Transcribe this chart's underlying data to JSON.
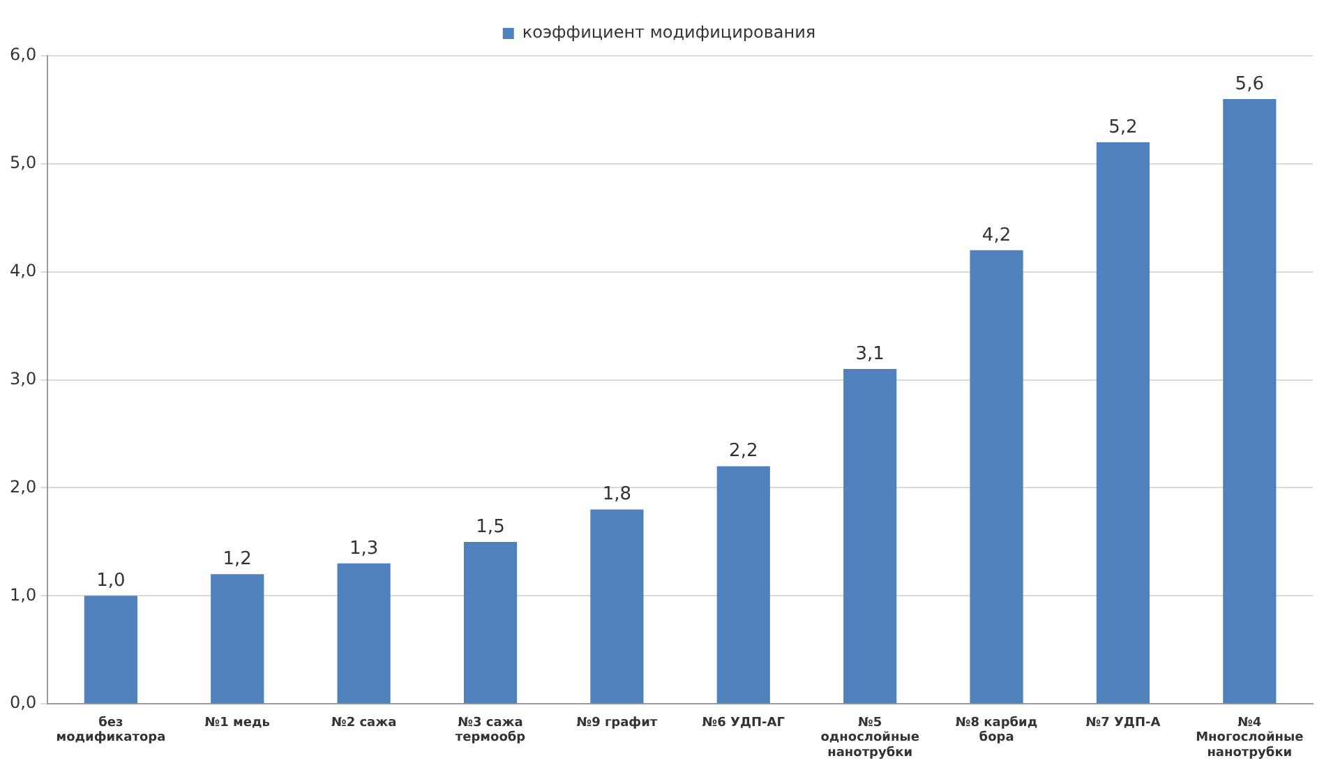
{
  "chart_data": {
    "type": "bar",
    "categories": [
      "без модификатора",
      "№1 медь",
      "№2 сажа",
      "№3 сажа термообр",
      "№9 графит",
      "№6 УДП-АГ",
      "№5 однослойные нанотрубки",
      "№8 карбид бора",
      "№7 УДП-А",
      "№4 Многослойные нанотрубки"
    ],
    "series": [
      {
        "name": "коэффициент модифицирования",
        "color": "#4f81bd",
        "values": [
          1.0,
          1.2,
          1.3,
          1.5,
          1.8,
          2.2,
          3.1,
          4.2,
          5.2,
          5.6
        ],
        "value_labels": [
          "1,0",
          "1,2",
          "1,3",
          "1,5",
          "1,8",
          "2,2",
          "3,1",
          "4,2",
          "5,2",
          "5,6"
        ]
      }
    ],
    "ylim": [
      0,
      6
    ],
    "yticks": [
      {
        "value": 0,
        "label": "0,0"
      },
      {
        "value": 1,
        "label": "1,0"
      },
      {
        "value": 2,
        "label": "2,0"
      },
      {
        "value": 3,
        "label": "3,0"
      },
      {
        "value": 4,
        "label": "4,0"
      },
      {
        "value": 5,
        "label": "5,0"
      },
      {
        "value": 6,
        "label": "6,0"
      }
    ],
    "grid": "y",
    "legend": "top"
  }
}
